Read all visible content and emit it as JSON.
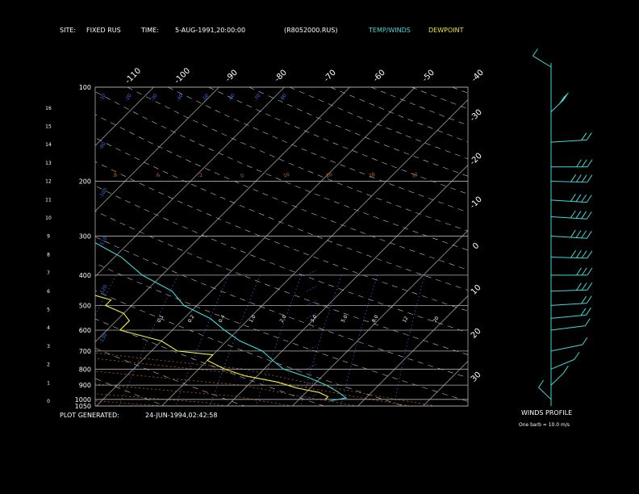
{
  "header": {
    "site_label": "SITE:",
    "site_value": "FIXED RUS",
    "time_label": "TIME:",
    "time_value": "5-AUG-1991,20:00:00",
    "file": "(R8052000.RUS)",
    "legend_temp": "TEMP/WINDS",
    "legend_dew": "DEWPOINT"
  },
  "footer": {
    "generated_label": "PLOT GENERATED:",
    "generated_value": "24-JUN-1994,02:42:58",
    "winds_title": "WINDS PROFILE",
    "barb_note": "One barb = 10.0 m/s"
  },
  "colors": {
    "temp": "#40d8d8",
    "dew": "#f0f040",
    "isobar": "#b0b0b0",
    "isotherm": "#b0b0b0",
    "mixing": "#3a70e0",
    "moist": "#d06a20",
    "dry": "#c0c0c0",
    "axis_text": "#ffffff",
    "temp_label_top": "#ffffff"
  },
  "chart_data": {
    "type": "line",
    "pressure_levels": [
      100,
      200,
      300,
      400,
      500,
      600,
      700,
      800,
      900,
      1000,
      1050
    ],
    "height_km_ticks": [
      16,
      15,
      14,
      13,
      12,
      11,
      10,
      9,
      8,
      7,
      6,
      5,
      4,
      3,
      2,
      1,
      0
    ],
    "isotherm_top_labels": [
      -110,
      -100,
      -90,
      -80,
      -70,
      -60,
      -50,
      -40
    ],
    "isotherm_right_labels": [
      -30,
      -20,
      -10,
      0,
      10,
      20,
      30
    ],
    "theta_labels": [
      120,
      110,
      90,
      80,
      70,
      60,
      50,
      40,
      30,
      20,
      10,
      5,
      0
    ],
    "theta_label_values": [
      "-10",
      "-20",
      "-30",
      "-40",
      "-50",
      "-60",
      "-70",
      "-80",
      "-90",
      "-100",
      "-110",
      "-120",
      "-130"
    ],
    "mixing_ratio_labels": [
      "0.1",
      "0.2",
      "0.4",
      "1.0",
      "2.0",
      "3.0",
      "5.0",
      "8.0",
      "12",
      "20"
    ],
    "moist_labels": [
      "-8",
      "-6",
      "-2",
      "0",
      "10",
      "20",
      "28",
      "32"
    ],
    "temperature": [
      [
        100,
        -72
      ],
      [
        110,
        -71
      ],
      [
        125,
        -76
      ],
      [
        140,
        -78
      ],
      [
        160,
        -78
      ],
      [
        175,
        -75
      ],
      [
        200,
        -69
      ],
      [
        230,
        -62
      ],
      [
        260,
        -56
      ],
      [
        300,
        -48
      ],
      [
        350,
        -39
      ],
      [
        400,
        -33
      ],
      [
        450,
        -26
      ],
      [
        500,
        -22
      ],
      [
        550,
        -16
      ],
      [
        600,
        -12
      ],
      [
        650,
        -8
      ],
      [
        700,
        -3
      ],
      [
        750,
        0
      ],
      [
        800,
        3
      ],
      [
        850,
        8
      ],
      [
        900,
        12
      ],
      [
        950,
        15
      ],
      [
        990,
        17
      ],
      [
        1010,
        15
      ]
    ],
    "dewpoint": [
      [
        200,
        -92
      ],
      [
        210,
        -93
      ],
      [
        220,
        -98
      ],
      [
        235,
        -94
      ],
      [
        245,
        -100
      ],
      [
        255,
        -96
      ],
      [
        270,
        -80
      ],
      [
        285,
        -86
      ],
      [
        300,
        -92
      ],
      [
        310,
        -76
      ],
      [
        325,
        -82
      ],
      [
        340,
        -70
      ],
      [
        355,
        -74
      ],
      [
        370,
        -56
      ],
      [
        380,
        -66
      ],
      [
        395,
        -54
      ],
      [
        410,
        -44
      ],
      [
        430,
        -40
      ],
      [
        460,
        -38
      ],
      [
        480,
        -34
      ],
      [
        500,
        -34
      ],
      [
        530,
        -30
      ],
      [
        560,
        -28
      ],
      [
        600,
        -28
      ],
      [
        650,
        -20
      ],
      [
        700,
        -16
      ],
      [
        720,
        -10
      ],
      [
        750,
        -10
      ],
      [
        800,
        -6
      ],
      [
        840,
        -2
      ],
      [
        880,
        4
      ],
      [
        920,
        8
      ],
      [
        950,
        12
      ],
      [
        980,
        14
      ],
      [
        1000,
        14
      ]
    ],
    "winds": [
      [
        100,
        10,
        150
      ],
      [
        120,
        25,
        200
      ],
      [
        150,
        15,
        260
      ],
      [
        180,
        30,
        270
      ],
      [
        200,
        35,
        275
      ],
      [
        230,
        40,
        280
      ],
      [
        260,
        40,
        280
      ],
      [
        300,
        38,
        280
      ],
      [
        350,
        35,
        275
      ],
      [
        400,
        30,
        270
      ],
      [
        450,
        25,
        265
      ],
      [
        500,
        20,
        260
      ],
      [
        550,
        15,
        255
      ],
      [
        600,
        12,
        250
      ],
      [
        700,
        10,
        240
      ],
      [
        800,
        8,
        220
      ],
      [
        900,
        6,
        200
      ],
      [
        1000,
        4,
        160
      ]
    ]
  }
}
